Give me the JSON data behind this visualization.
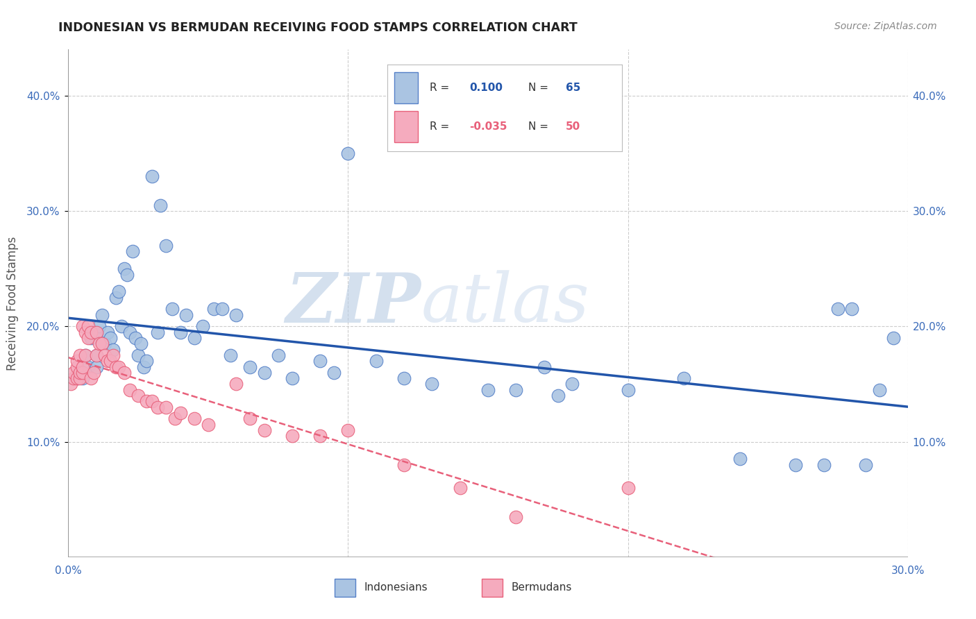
{
  "title": "INDONESIAN VS BERMUDAN RECEIVING FOOD STAMPS CORRELATION CHART",
  "source": "Source: ZipAtlas.com",
  "ylabel": "Receiving Food Stamps",
  "ytick_values": [
    0.0,
    0.1,
    0.2,
    0.3,
    0.4
  ],
  "xlim": [
    0.0,
    0.3
  ],
  "ylim": [
    0.0,
    0.44
  ],
  "legend_r_blue": "0.100",
  "legend_n_blue": "65",
  "legend_r_pink": "-0.035",
  "legend_n_pink": "50",
  "watermark_zip": "ZIP",
  "watermark_atlas": "atlas",
  "blue_fill": "#aac4e2",
  "pink_fill": "#f5abbe",
  "blue_edge": "#5580c8",
  "pink_edge": "#e8607a",
  "blue_line": "#2255aa",
  "pink_line": "#e8607a",
  "indonesian_x": [
    0.003,
    0.005,
    0.006,
    0.007,
    0.008,
    0.009,
    0.01,
    0.01,
    0.01,
    0.011,
    0.012,
    0.013,
    0.014,
    0.015,
    0.016,
    0.017,
    0.018,
    0.019,
    0.02,
    0.021,
    0.022,
    0.023,
    0.024,
    0.025,
    0.026,
    0.027,
    0.028,
    0.03,
    0.032,
    0.033,
    0.035,
    0.037,
    0.04,
    0.042,
    0.045,
    0.048,
    0.052,
    0.055,
    0.058,
    0.06,
    0.065,
    0.07,
    0.075,
    0.08,
    0.09,
    0.095,
    0.1,
    0.11,
    0.12,
    0.13,
    0.15,
    0.16,
    0.17,
    0.175,
    0.18,
    0.2,
    0.22,
    0.24,
    0.26,
    0.27,
    0.275,
    0.28,
    0.285,
    0.29,
    0.295
  ],
  "indonesian_y": [
    0.155,
    0.155,
    0.175,
    0.165,
    0.19,
    0.195,
    0.195,
    0.175,
    0.165,
    0.2,
    0.21,
    0.185,
    0.195,
    0.19,
    0.18,
    0.225,
    0.23,
    0.2,
    0.25,
    0.245,
    0.195,
    0.265,
    0.19,
    0.175,
    0.185,
    0.165,
    0.17,
    0.33,
    0.195,
    0.305,
    0.27,
    0.215,
    0.195,
    0.21,
    0.19,
    0.2,
    0.215,
    0.215,
    0.175,
    0.21,
    0.165,
    0.16,
    0.175,
    0.155,
    0.17,
    0.16,
    0.35,
    0.17,
    0.155,
    0.15,
    0.145,
    0.145,
    0.165,
    0.14,
    0.15,
    0.145,
    0.155,
    0.085,
    0.08,
    0.08,
    0.215,
    0.215,
    0.08,
    0.145,
    0.19
  ],
  "bermudan_x": [
    0.001,
    0.002,
    0.002,
    0.003,
    0.003,
    0.003,
    0.004,
    0.004,
    0.004,
    0.005,
    0.005,
    0.005,
    0.006,
    0.006,
    0.007,
    0.007,
    0.008,
    0.008,
    0.009,
    0.01,
    0.01,
    0.011,
    0.012,
    0.013,
    0.014,
    0.015,
    0.016,
    0.017,
    0.018,
    0.02,
    0.022,
    0.025,
    0.028,
    0.03,
    0.032,
    0.035,
    0.038,
    0.04,
    0.045,
    0.05,
    0.06,
    0.065,
    0.07,
    0.08,
    0.09,
    0.1,
    0.12,
    0.14,
    0.16,
    0.2
  ],
  "bermudan_y": [
    0.15,
    0.155,
    0.16,
    0.155,
    0.165,
    0.17,
    0.155,
    0.16,
    0.175,
    0.16,
    0.165,
    0.2,
    0.175,
    0.195,
    0.19,
    0.2,
    0.155,
    0.195,
    0.16,
    0.195,
    0.175,
    0.185,
    0.185,
    0.175,
    0.17,
    0.17,
    0.175,
    0.165,
    0.165,
    0.16,
    0.145,
    0.14,
    0.135,
    0.135,
    0.13,
    0.13,
    0.12,
    0.125,
    0.12,
    0.115,
    0.15,
    0.12,
    0.11,
    0.105,
    0.105,
    0.11,
    0.08,
    0.06,
    0.035,
    0.06
  ]
}
